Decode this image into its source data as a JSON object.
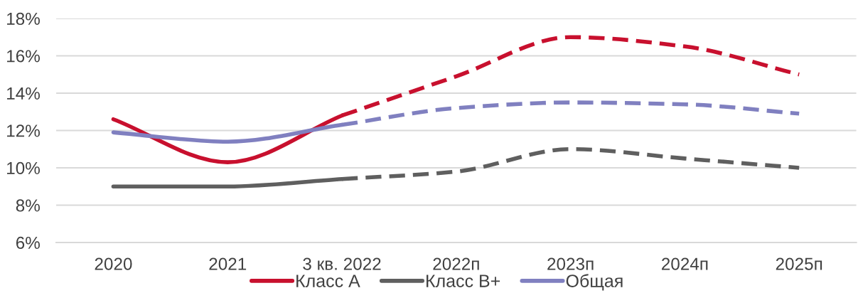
{
  "chart_data": {
    "type": "line",
    "categories": [
      "2020",
      "2021",
      "3 кв. 2022",
      "2022п",
      "2023п",
      "2024п",
      "2025п"
    ],
    "series": [
      {
        "name": "Класс А",
        "color": "#c8102e",
        "line_style": "solid",
        "values": [
          12.6,
          10.3,
          12.8,
          null,
          null,
          null,
          null
        ]
      },
      {
        "color": "#c8102e",
        "line_style": "dashed",
        "values": [
          null,
          null,
          12.8,
          14.9,
          17.0,
          16.5,
          15.0
        ]
      },
      {
        "name": "Класс В+",
        "color": "#5f5f5f",
        "line_style": "solid",
        "values": [
          9.0,
          9.0,
          9.4,
          null,
          null,
          null,
          null
        ]
      },
      {
        "color": "#5f5f5f",
        "line_style": "dashed",
        "values": [
          null,
          null,
          9.4,
          9.8,
          11.0,
          10.5,
          10.0
        ]
      },
      {
        "name": "Общая",
        "color": "#8080c0",
        "line_style": "solid",
        "values": [
          11.9,
          11.4,
          12.3,
          null,
          null,
          null,
          null
        ]
      },
      {
        "color": "#8080c0",
        "line_style": "dashed",
        "values": [
          null,
          null,
          12.3,
          13.2,
          13.5,
          13.4,
          12.9
        ]
      }
    ],
    "ylim": [
      6,
      18
    ],
    "yticks": [
      {
        "value": 6,
        "label": "6%"
      },
      {
        "value": 8,
        "label": "8%"
      },
      {
        "value": 10,
        "label": "10%"
      },
      {
        "value": 12,
        "label": "12%"
      },
      {
        "value": 14,
        "label": "14%"
      },
      {
        "value": 16,
        "label": "16%"
      },
      {
        "value": 18,
        "label": "18%"
      }
    ],
    "grid": "y",
    "legend": "bottom"
  }
}
